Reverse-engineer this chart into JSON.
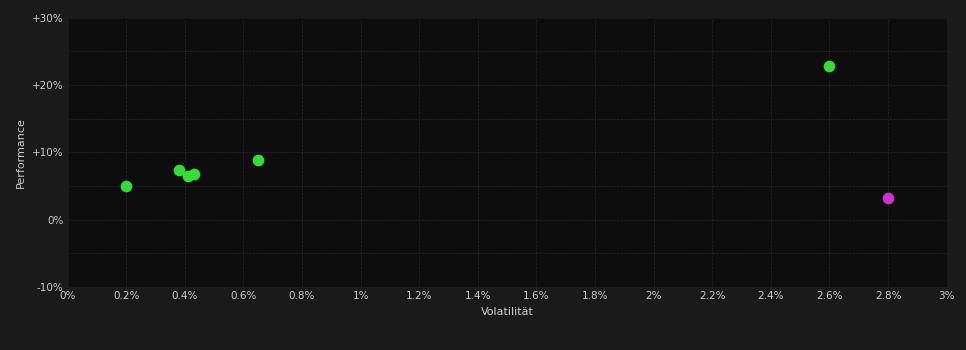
{
  "background_color": "#1a1a1a",
  "plot_bg_color": "#0d0d0d",
  "grid_color": "#2a2a2a",
  "text_color": "#cccccc",
  "xlabel": "Volatilität",
  "ylabel": "Performance",
  "xlim": [
    0,
    0.03
  ],
  "ylim": [
    -0.1,
    0.3
  ],
  "green_points": [
    [
      0.002,
      0.05
    ],
    [
      0.0038,
      0.073
    ],
    [
      0.0041,
      0.065
    ],
    [
      0.0043,
      0.068
    ],
    [
      0.0065,
      0.088
    ],
    [
      0.026,
      0.228
    ]
  ],
  "purple_points": [
    [
      0.028,
      0.032
    ]
  ],
  "green_color": "#33dd33",
  "purple_color": "#cc33cc",
  "marker_size": 55
}
